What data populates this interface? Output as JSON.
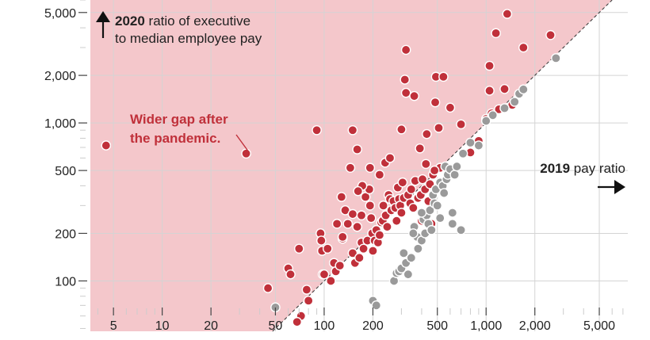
{
  "chart_data": {
    "type": "scatter",
    "x_scale": "log",
    "y_scale": "log",
    "xlim": [
      3.6,
      7500
    ],
    "ylim": [
      48,
      6000
    ],
    "x_ticks": [
      {
        "value": 5,
        "label": "5"
      },
      {
        "value": 10,
        "label": "10"
      },
      {
        "value": 20,
        "label": "20"
      },
      {
        "value": 50,
        "label": "50"
      },
      {
        "value": 100,
        "label": "100"
      },
      {
        "value": 200,
        "label": "200"
      },
      {
        "value": 500,
        "label": "500"
      },
      {
        "value": 1000,
        "label": "1,000"
      },
      {
        "value": 2000,
        "label": "2,000"
      },
      {
        "value": 5000,
        "label": "5,000"
      }
    ],
    "y_ticks": [
      {
        "value": 100,
        "label": "100"
      },
      {
        "value": 200,
        "label": "200"
      },
      {
        "value": 500,
        "label": "500"
      },
      {
        "value": 1000,
        "label": "1,000"
      },
      {
        "value": 2000,
        "label": "2,000"
      },
      {
        "value": 5000,
        "label": "5,000"
      }
    ],
    "grid": true,
    "reference_line": "2020 ratio = 2019 ratio",
    "annotations": {
      "y_axis_title_bold": "2020",
      "y_axis_title_rest": " ratio of executive",
      "y_axis_title_line2": "to median employee pay",
      "x_axis_title_bold": "2019",
      "x_axis_title_rest": " pay ratio",
      "region_label_line1": "Wider gap after",
      "region_label_line2": "the pandemic."
    },
    "colors": {
      "region_fill": "#f4c7cb",
      "wider_gap": "#c0303a",
      "narrower_gap": "#9a9a9a",
      "grid": "#d4d4d4"
    },
    "series": [
      {
        "group": "wider_gap",
        "points": [
          [
            4.5,
            720
          ],
          [
            33,
            640
          ],
          [
            45,
            90
          ],
          [
            60,
            120
          ],
          [
            62,
            110
          ],
          [
            70,
            160
          ],
          [
            72,
            60
          ],
          [
            78,
            88
          ],
          [
            80,
            75
          ],
          [
            68,
            55
          ],
          [
            90,
            900
          ],
          [
            95,
            200
          ],
          [
            96,
            180
          ],
          [
            97,
            155
          ],
          [
            98,
            110
          ],
          [
            100,
            110
          ],
          [
            105,
            160
          ],
          [
            110,
            100
          ],
          [
            115,
            130
          ],
          [
            118,
            115
          ],
          [
            120,
            230
          ],
          [
            125,
            125
          ],
          [
            128,
            340
          ],
          [
            130,
            185
          ],
          [
            135,
            280
          ],
          [
            140,
            230
          ],
          [
            145,
            520
          ],
          [
            150,
            150
          ],
          [
            150,
            265
          ],
          [
            155,
            130
          ],
          [
            160,
            220
          ],
          [
            165,
            140
          ],
          [
            170,
            175
          ],
          [
            175,
            160
          ],
          [
            180,
            340
          ],
          [
            185,
            180
          ],
          [
            190,
            380
          ],
          [
            192,
            300
          ],
          [
            195,
            250
          ],
          [
            198,
            200
          ],
          [
            200,
            155
          ],
          [
            205,
            180
          ],
          [
            210,
            210
          ],
          [
            215,
            175
          ],
          [
            220,
            195
          ],
          [
            225,
            235
          ],
          [
            230,
            240
          ],
          [
            232,
            300
          ],
          [
            240,
            260
          ],
          [
            245,
            220
          ],
          [
            250,
            350
          ],
          [
            255,
            330
          ],
          [
            260,
            280
          ],
          [
            268,
            320
          ],
          [
            275,
            290
          ],
          [
            280,
            240
          ],
          [
            285,
            390
          ],
          [
            290,
            330
          ],
          [
            295,
            300
          ],
          [
            300,
            270
          ],
          [
            305,
            420
          ],
          [
            310,
            335
          ],
          [
            315,
            1880
          ],
          [
            320,
            1550
          ],
          [
            330,
            350
          ],
          [
            340,
            310
          ],
          [
            345,
            380
          ],
          [
            355,
            290
          ],
          [
            365,
            430
          ],
          [
            380,
            335
          ],
          [
            395,
            350
          ],
          [
            405,
            440
          ],
          [
            420,
            380
          ],
          [
            425,
            550
          ],
          [
            430,
            850
          ],
          [
            440,
            320
          ],
          [
            450,
            410
          ],
          [
            470,
            470
          ],
          [
            485,
            1350
          ],
          [
            490,
            1960
          ],
          [
            510,
            930
          ],
          [
            520,
            520
          ],
          [
            545,
            1960
          ],
          [
            600,
            1250
          ],
          [
            700,
            980
          ],
          [
            800,
            650
          ],
          [
            900,
            770
          ],
          [
            1000,
            1060
          ],
          [
            1050,
            1600
          ],
          [
            1080,
            1150
          ],
          [
            1200,
            1220
          ],
          [
            1300,
            1640
          ],
          [
            1350,
            4900
          ],
          [
            1450,
            1300
          ],
          [
            1700,
            3000
          ],
          [
            2500,
            3600
          ],
          [
            1050,
            2300
          ],
          [
            1150,
            3700
          ],
          [
            150,
            900
          ],
          [
            160,
            680
          ],
          [
            172,
            400
          ],
          [
            192,
            520
          ],
          [
            162,
            370
          ],
          [
            220,
            470
          ],
          [
            238,
            560
          ],
          [
            255,
            600
          ],
          [
            300,
            910
          ],
          [
            320,
            2900
          ],
          [
            360,
            1480
          ],
          [
            390,
            690
          ],
          [
            400,
            240
          ],
          [
            460,
            230
          ],
          [
            480,
            500
          ],
          [
            170,
            260
          ],
          [
            130,
            190
          ]
        ]
      },
      {
        "group": "narrower_gap",
        "points": [
          [
            50,
            68
          ],
          [
            200,
            75
          ],
          [
            210,
            70
          ],
          [
            270,
            100
          ],
          [
            280,
            112
          ],
          [
            290,
            115
          ],
          [
            300,
            120
          ],
          [
            320,
            130
          ],
          [
            330,
            110
          ],
          [
            345,
            140
          ],
          [
            360,
            220
          ],
          [
            375,
            190
          ],
          [
            400,
            180
          ],
          [
            410,
            245
          ],
          [
            420,
            200
          ],
          [
            430,
            260
          ],
          [
            440,
            230
          ],
          [
            450,
            280
          ],
          [
            460,
            210
          ],
          [
            470,
            350
          ],
          [
            480,
            310
          ],
          [
            490,
            380
          ],
          [
            500,
            300
          ],
          [
            520,
            420
          ],
          [
            540,
            400
          ],
          [
            550,
            360
          ],
          [
            560,
            530
          ],
          [
            570,
            440
          ],
          [
            580,
            470
          ],
          [
            600,
            510
          ],
          [
            620,
            230
          ],
          [
            640,
            470
          ],
          [
            660,
            530
          ],
          [
            720,
            640
          ],
          [
            800,
            750
          ],
          [
            900,
            720
          ],
          [
            1000,
            1030
          ],
          [
            1100,
            1120
          ],
          [
            1300,
            1240
          ],
          [
            1500,
            1360
          ],
          [
            1600,
            1530
          ],
          [
            1700,
            1630
          ],
          [
            2700,
            2570
          ],
          [
            700,
            210
          ],
          [
            620,
            270
          ],
          [
            520,
            250
          ],
          [
            380,
            160
          ],
          [
            310,
            150
          ],
          [
            400,
            270
          ],
          [
            355,
            200
          ]
        ]
      }
    ]
  }
}
